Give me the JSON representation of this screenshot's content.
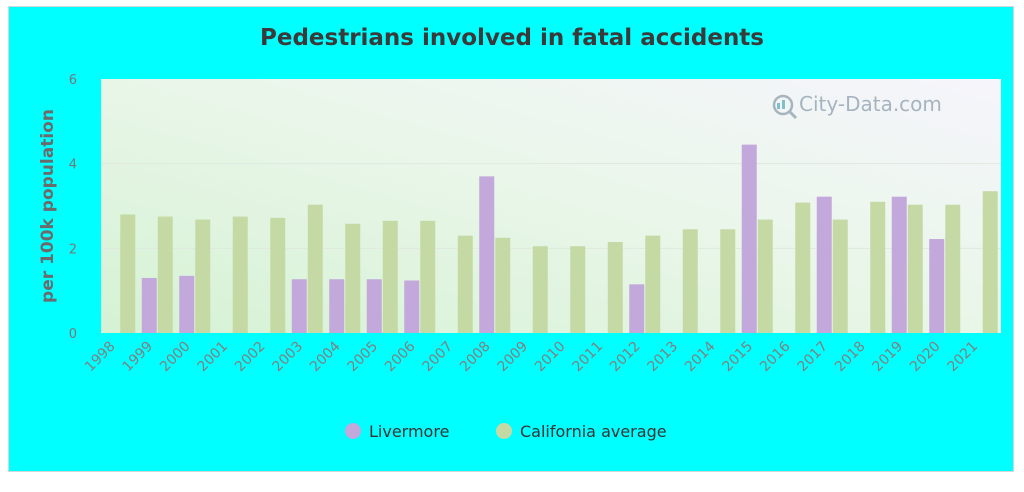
{
  "watermark": "City-Data.com",
  "colors": {
    "frame_background": "#00ffff",
    "livermore": "#c3a8dc",
    "california": "#c5d9a5",
    "text": "#3a3a3a"
  },
  "chart_data": {
    "type": "bar",
    "title": "Pedestrians involved in fatal accidents",
    "xlabel": "",
    "ylabel": "per 100k population",
    "ylim": [
      0,
      6
    ],
    "yticks": [
      0,
      2,
      4,
      6
    ],
    "grid": true,
    "legend": "bottom",
    "categories": [
      "1998",
      "1999",
      "2000",
      "2001",
      "2002",
      "2003",
      "2004",
      "2005",
      "2006",
      "2007",
      "2008",
      "2009",
      "2010",
      "2011",
      "2012",
      "2013",
      "2014",
      "2015",
      "2016",
      "2017",
      "2018",
      "2019",
      "2020",
      "2021"
    ],
    "series": [
      {
        "name": "Livermore",
        "color": "#c3a8dc",
        "values": [
          null,
          1.3,
          1.35,
          null,
          null,
          1.27,
          1.27,
          1.27,
          1.24,
          null,
          3.7,
          null,
          null,
          null,
          1.15,
          null,
          null,
          4.45,
          null,
          3.22,
          null,
          3.22,
          2.22,
          null
        ]
      },
      {
        "name": "California average",
        "color": "#c5d9a5",
        "values": [
          2.8,
          2.75,
          2.68,
          2.75,
          2.72,
          3.03,
          2.58,
          2.65,
          2.65,
          2.3,
          2.25,
          2.05,
          2.05,
          2.15,
          2.3,
          2.45,
          2.45,
          2.68,
          3.08,
          2.68,
          3.1,
          3.03,
          3.03,
          3.35
        ]
      }
    ]
  }
}
